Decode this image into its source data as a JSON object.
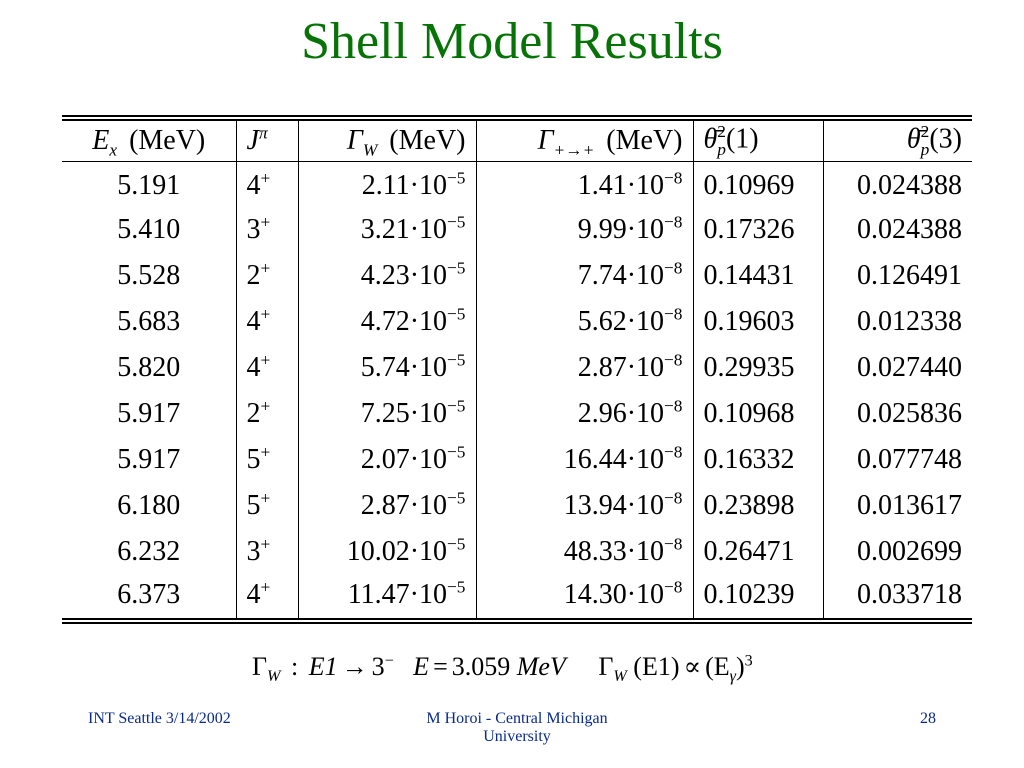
{
  "title": "Shell Model Results",
  "table": {
    "headers": [
      {
        "base": "E",
        "sub": "x",
        "unit": "(MeV)"
      },
      {
        "base": "J",
        "sup": "π"
      },
      {
        "base": "Γ",
        "sub": "W",
        "unit": "(MeV)"
      },
      {
        "base": "Γ",
        "sub": "+→+",
        "unit": "(MeV)"
      },
      {
        "base": "θ̄",
        "sup": "2",
        "sub": "p",
        "unit": "(1)"
      },
      {
        "base": "θ̄",
        "sup": "2",
        "sub": "p",
        "unit": "(3)"
      }
    ],
    "rows": [
      [
        "5.191",
        {
          "base": "4",
          "sup": "+"
        },
        {
          "base": "2.11·10",
          "sup": "−5"
        },
        {
          "base": "1.41·10",
          "sup": "−8"
        },
        "0.10969",
        "0.024388"
      ],
      [
        "5.410",
        {
          "base": "3",
          "sup": "+"
        },
        {
          "base": "3.21·10",
          "sup": "−5"
        },
        {
          "base": "9.99·10",
          "sup": "−8"
        },
        "0.17326",
        "0.024388"
      ],
      [
        "5.528",
        {
          "base": "2",
          "sup": "+"
        },
        {
          "base": "4.23·10",
          "sup": "−5"
        },
        {
          "base": "7.74·10",
          "sup": "−8"
        },
        "0.14431",
        "0.126491"
      ],
      [
        "5.683",
        {
          "base": "4",
          "sup": "+"
        },
        {
          "base": "4.72·10",
          "sup": "−5"
        },
        {
          "base": "5.62·10",
          "sup": "−8"
        },
        "0.19603",
        "0.012338"
      ],
      [
        "5.820",
        {
          "base": "4",
          "sup": "+"
        },
        {
          "base": "5.74·10",
          "sup": "−5"
        },
        {
          "base": "2.87·10",
          "sup": "−8"
        },
        "0.29935",
        "0.027440"
      ],
      [
        "5.917",
        {
          "base": "2",
          "sup": "+"
        },
        {
          "base": "7.25·10",
          "sup": "−5"
        },
        {
          "base": "2.96·10",
          "sup": "−8"
        },
        "0.10968",
        "0.025836"
      ],
      [
        "5.917",
        {
          "base": "5",
          "sup": "+"
        },
        {
          "base": "2.07·10",
          "sup": "−5"
        },
        {
          "base": "16.44·10",
          "sup": "−8"
        },
        "0.16332",
        "0.077748"
      ],
      [
        "6.180",
        {
          "base": "5",
          "sup": "+"
        },
        {
          "base": "2.87·10",
          "sup": "−5"
        },
        {
          "base": "13.94·10",
          "sup": "−8"
        },
        "0.23898",
        "0.013617"
      ],
      [
        "6.232",
        {
          "base": "3",
          "sup": "+"
        },
        {
          "base": "10.02·10",
          "sup": "−5"
        },
        {
          "base": "48.33·10",
          "sup": "−8"
        },
        "0.26471",
        "0.002699"
      ],
      [
        "6.373",
        {
          "base": "4",
          "sup": "+"
        },
        {
          "base": "11.47·10",
          "sup": "−5"
        },
        {
          "base": "14.30·10",
          "sup": "−8"
        },
        "0.10239",
        "0.033718"
      ]
    ]
  },
  "formula": [
    "Γ",
    "W",
    ":",
    "E1",
    "→",
    "3",
    "−",
    "E",
    "=",
    "3.059",
    "MeV",
    "Γ",
    "W",
    "(E1)",
    "∝",
    "(E",
    "γ",
    ")",
    "3"
  ],
  "footer": {
    "left": "INT Seattle 3/14/2002",
    "center": "M Horoi - Central Michigan University",
    "right": "28"
  }
}
